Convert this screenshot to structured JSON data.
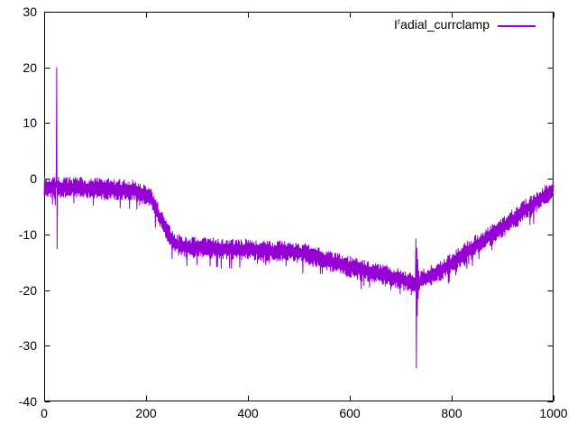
{
  "figure": {
    "background": "#ffffff",
    "border_color": "#000000",
    "text_color": "#000000"
  },
  "chart_data": {
    "type": "line",
    "title": "",
    "xlabel": "",
    "ylabel": "",
    "xlim": [
      0,
      1000
    ],
    "ylim": [
      -40,
      30
    ],
    "xticks": [
      0,
      200,
      400,
      600,
      800,
      1000
    ],
    "yticks": [
      -40,
      -30,
      -20,
      -10,
      0,
      10,
      20,
      30
    ],
    "grid": false,
    "legend_position": "top-right-inside",
    "series": [
      {
        "name": "Iradial_currclamp",
        "label_prefix": "I",
        "label_sup": "r",
        "label_rest": "adial_currclamp",
        "color": "#9400d3",
        "style": "noisy-line",
        "noise_band": 1.9,
        "envelope": [
          [
            0,
            -1.5
          ],
          [
            100,
            -1.7
          ],
          [
            185,
            -2.2
          ],
          [
            210,
            -3.5
          ],
          [
            235,
            -8.5
          ],
          [
            255,
            -11.5
          ],
          [
            275,
            -12.3
          ],
          [
            420,
            -12.8
          ],
          [
            500,
            -13.2
          ],
          [
            560,
            -14.8
          ],
          [
            620,
            -16.3
          ],
          [
            680,
            -17.6
          ],
          [
            727,
            -18.7
          ],
          [
            733,
            -18.7
          ],
          [
            790,
            -15.8
          ],
          [
            850,
            -11.8
          ],
          [
            900,
            -8.8
          ],
          [
            950,
            -5.2
          ],
          [
            1000,
            -1.8
          ]
        ],
        "spikes": [
          {
            "x": 25,
            "peak_up": 20,
            "peak_down": -12.6,
            "ringing": []
          },
          {
            "x": 730,
            "peak_up": -10.8,
            "peak_down": -34,
            "ringing": [
              -12.5,
              -24.5,
              -14.5,
              -21.5,
              -16.5,
              -20.0
            ]
          }
        ]
      }
    ]
  }
}
